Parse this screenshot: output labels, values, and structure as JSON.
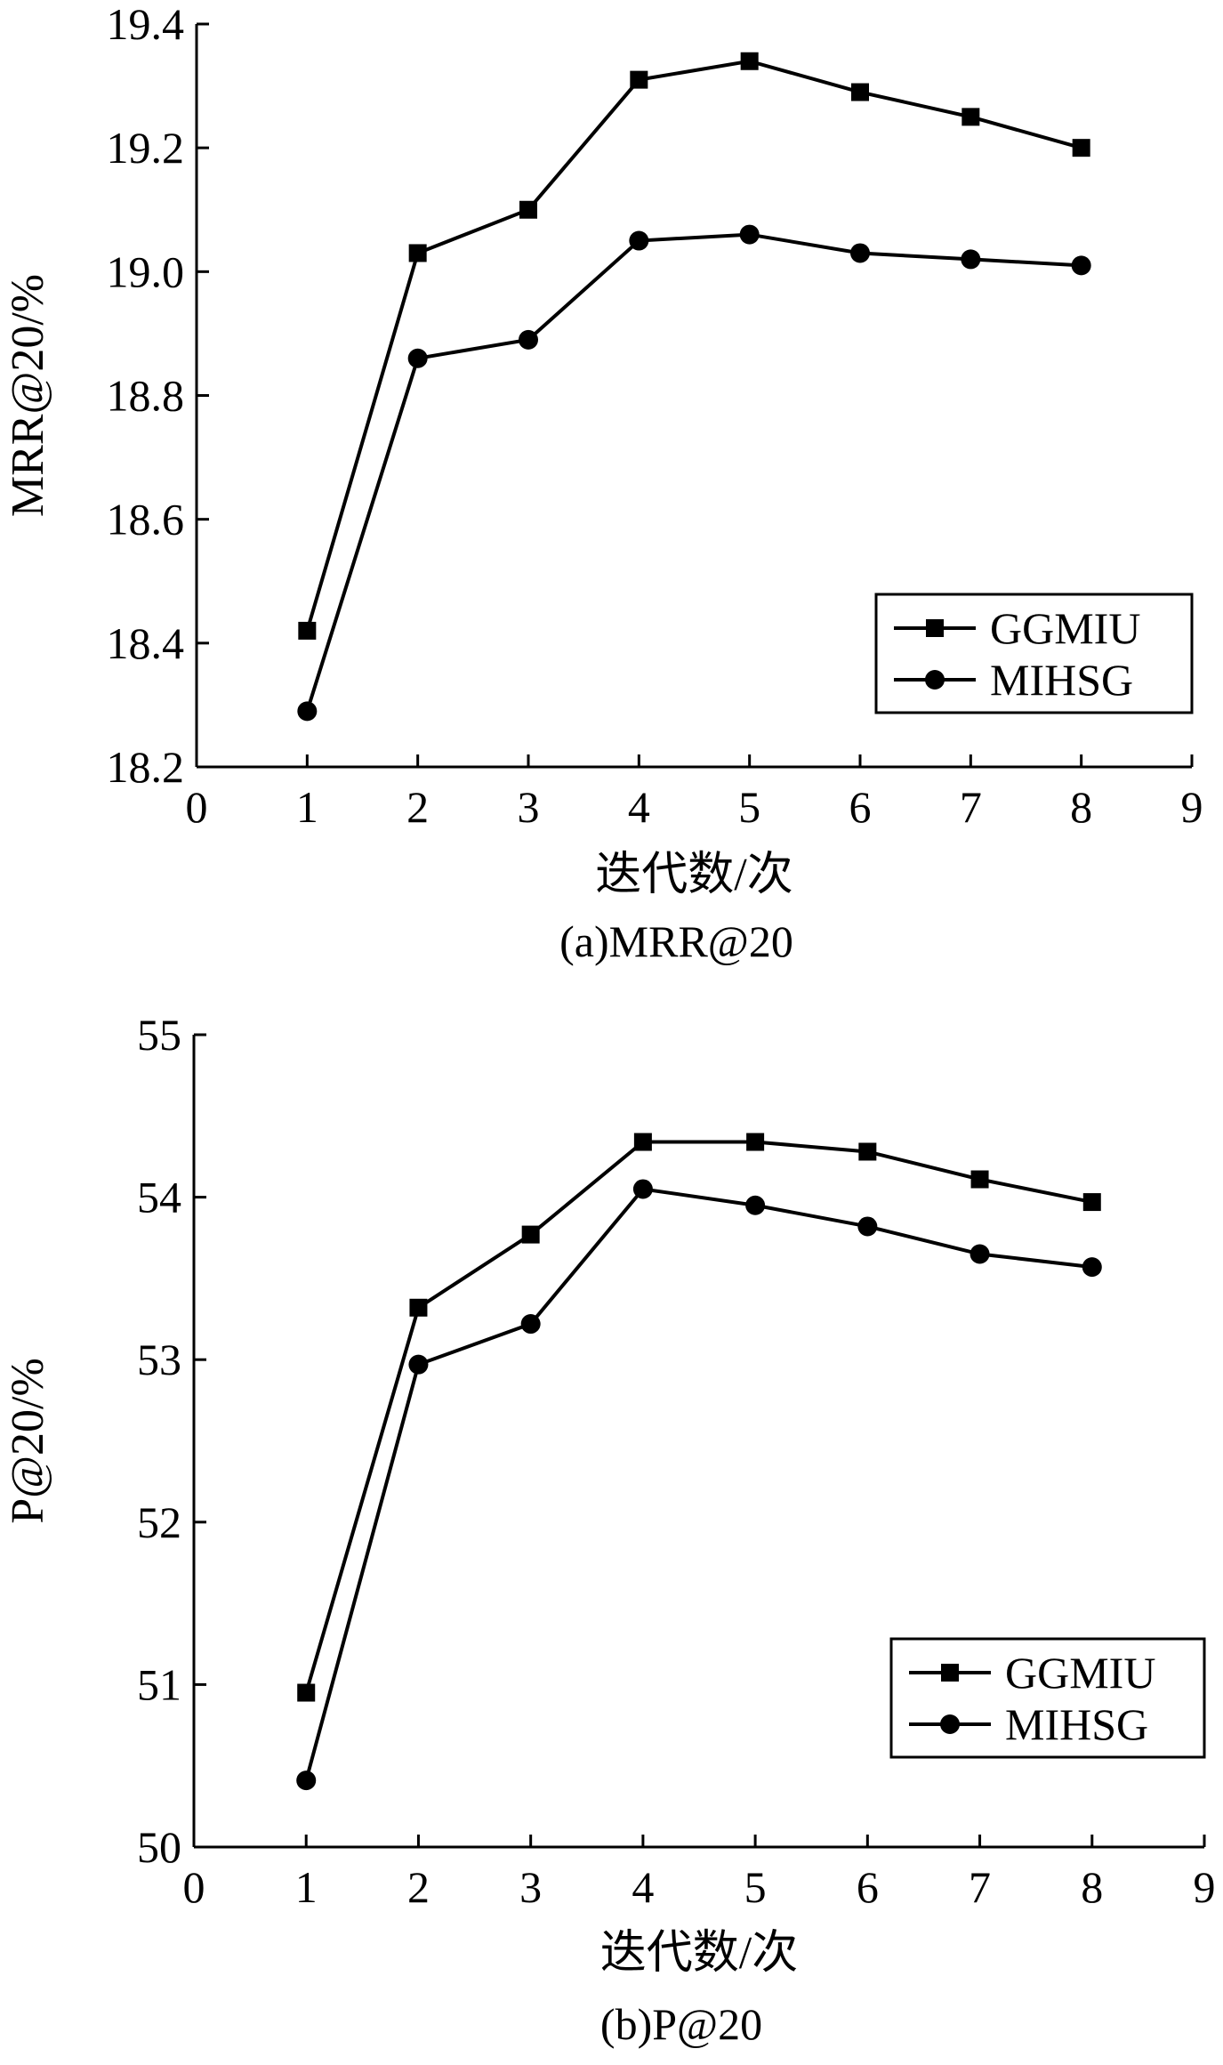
{
  "chart_data": [
    {
      "type": "line",
      "caption": "(a)MRR@20",
      "xlabel": "迭代数/次",
      "ylabel": "MRR@20/%",
      "xlim": [
        0,
        9
      ],
      "ylim": [
        18.2,
        19.4
      ],
      "xticks": [
        "0",
        "1",
        "2",
        "3",
        "4",
        "5",
        "6",
        "7",
        "8",
        "9"
      ],
      "yticks": [
        "18.2",
        "18.4",
        "18.6",
        "18.8",
        "19.0",
        "19.2",
        "19.4"
      ],
      "x": [
        1,
        2,
        3,
        4,
        5,
        6,
        7,
        8
      ],
      "legend_position": "bottom-right",
      "grid": false,
      "series": [
        {
          "name": "GGMIU",
          "marker": "square",
          "values": [
            18.42,
            19.03,
            19.1,
            19.31,
            19.34,
            19.29,
            19.25,
            19.2
          ]
        },
        {
          "name": "MIHSG",
          "marker": "circle",
          "values": [
            18.29,
            18.86,
            18.89,
            19.05,
            19.06,
            19.03,
            19.02,
            19.01
          ]
        }
      ]
    },
    {
      "type": "line",
      "caption": "(b)P@20",
      "xlabel": "迭代数/次",
      "ylabel": "P@20/%",
      "xlim": [
        0,
        9
      ],
      "ylim": [
        50,
        55
      ],
      "xticks": [
        "0",
        "1",
        "2",
        "3",
        "4",
        "5",
        "6",
        "7",
        "8",
        "9"
      ],
      "yticks": [
        "50",
        "51",
        "52",
        "53",
        "54",
        "55"
      ],
      "x": [
        1,
        2,
        3,
        4,
        5,
        6,
        7,
        8
      ],
      "legend_position": "bottom-right",
      "grid": false,
      "series": [
        {
          "name": "GGMIU",
          "marker": "square",
          "values": [
            50.95,
            53.32,
            53.77,
            54.34,
            54.34,
            54.28,
            54.11,
            53.97
          ]
        },
        {
          "name": "MIHSG",
          "marker": "circle",
          "values": [
            50.41,
            52.97,
            53.22,
            54.05,
            53.95,
            53.82,
            53.65,
            53.57
          ]
        }
      ]
    }
  ]
}
